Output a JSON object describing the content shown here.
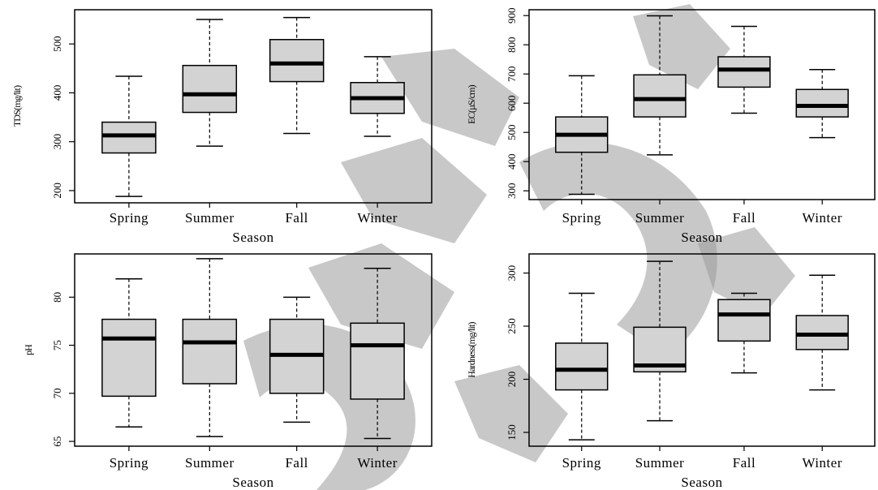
{
  "chart_data": [
    {
      "type": "box",
      "ylabel": "TDS(mg/lit)",
      "xlabel": "Season",
      "categories": [
        "Spring",
        "Summer",
        "Fall",
        "Winter"
      ],
      "yticks": [
        200,
        300,
        400,
        500
      ],
      "ylim": [
        175,
        570
      ],
      "boxes": [
        {
          "min": 188,
          "q1": 277,
          "median": 313,
          "q3": 340,
          "max": 434
        },
        {
          "min": 291,
          "q1": 360,
          "median": 397,
          "q3": 456,
          "max": 550
        },
        {
          "min": 317,
          "q1": 423,
          "median": 460,
          "q3": 509,
          "max": 554
        },
        {
          "min": 311,
          "q1": 358,
          "median": 389,
          "q3": 421,
          "max": 474
        }
      ]
    },
    {
      "type": "box",
      "ylabel": "EC(µS/cm)",
      "xlabel": "Season",
      "categories": [
        "Spring",
        "Summer",
        "Fall",
        "Winter"
      ],
      "yticks": [
        300,
        400,
        500,
        600,
        700,
        800,
        900
      ],
      "ylim": [
        270,
        920
      ],
      "boxes": [
        {
          "min": 288,
          "q1": 432,
          "median": 492,
          "q3": 553,
          "max": 694
        },
        {
          "min": 423,
          "q1": 553,
          "median": 614,
          "q3": 697,
          "max": 899
        },
        {
          "min": 566,
          "q1": 655,
          "median": 715,
          "q3": 759,
          "max": 863
        },
        {
          "min": 482,
          "q1": 553,
          "median": 591,
          "q3": 647,
          "max": 715
        }
      ]
    },
    {
      "type": "box",
      "ylabel": "pH",
      "xlabel": "Season",
      "categories": [
        "Spring",
        "Summer",
        "Fall",
        "Winter"
      ],
      "yticks": [
        6.5,
        7.0,
        7.5,
        8.0
      ],
      "yticklabels": [
        "65",
        "70",
        "75",
        "80"
      ],
      "ylim": [
        6.45,
        8.45
      ],
      "boxes": [
        {
          "min": 6.65,
          "q1": 6.97,
          "median": 7.57,
          "q3": 7.77,
          "max": 8.19
        },
        {
          "min": 6.55,
          "q1": 7.1,
          "median": 7.53,
          "q3": 7.77,
          "max": 8.4
        },
        {
          "min": 6.7,
          "q1": 7.0,
          "median": 7.4,
          "q3": 7.77,
          "max": 8.0
        },
        {
          "min": 6.53,
          "q1": 6.94,
          "median": 7.5,
          "q3": 7.73,
          "max": 8.3
        }
      ]
    },
    {
      "type": "box",
      "ylabel": "Hardness(mg/lit)",
      "xlabel": "Season",
      "categories": [
        "Spring",
        "Summer",
        "Fall",
        "Winter"
      ],
      "yticks": [
        150,
        200,
        250,
        300
      ],
      "ylim": [
        137,
        318
      ],
      "boxes": [
        {
          "min": 143,
          "q1": 190,
          "median": 209,
          "q3": 234,
          "max": 281
        },
        {
          "min": 161,
          "q1": 207,
          "median": 213,
          "q3": 249,
          "max": 311
        },
        {
          "min": 206,
          "q1": 236,
          "median": 261,
          "q3": 275,
          "max": 281
        },
        {
          "min": 190,
          "q1": 228,
          "median": 242,
          "q3": 260,
          "max": 298
        }
      ]
    }
  ]
}
